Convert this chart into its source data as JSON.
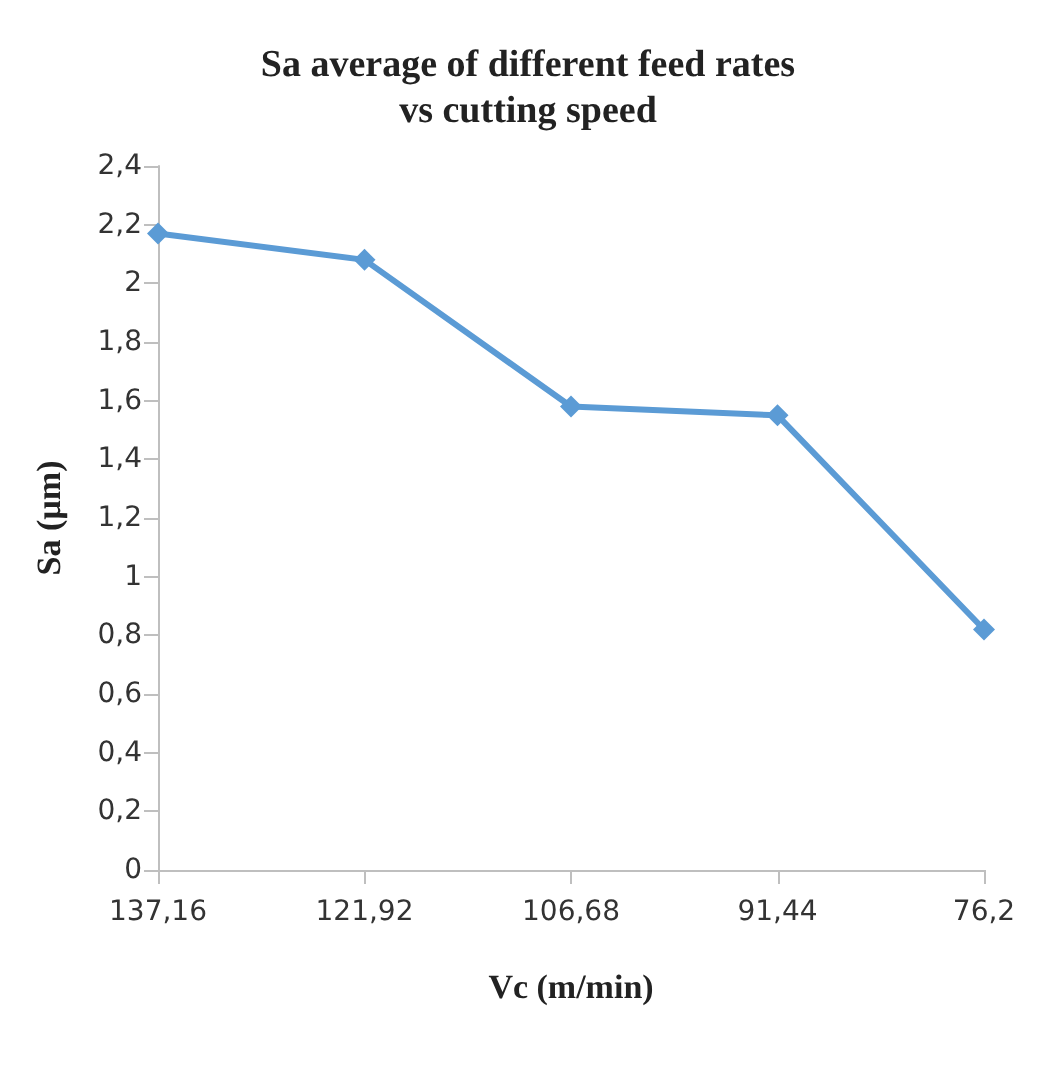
{
  "chart_data": {
    "type": "line",
    "title": "Sa average of different feed rates\nvs cutting speed",
    "xlabel": "Vc (m/min)",
    "ylabel": "Sa (µm)",
    "categories": [
      "137,16",
      "121,92",
      "106,68",
      "91,44",
      "76,2"
    ],
    "series": [
      {
        "color": "#5b9bd5",
        "values": [
          2.17,
          2.08,
          1.58,
          1.55,
          0.82
        ]
      }
    ],
    "ylim": [
      0,
      2.4
    ],
    "yticks": [
      0,
      {
        "value": 0.2,
        "label": "0,2"
      },
      {
        "value": 0.4,
        "label": "0,4"
      },
      {
        "value": 0.6,
        "label": "0,6"
      },
      {
        "value": 0.8,
        "label": "0,8"
      },
      1,
      {
        "value": 1.2,
        "label": "1,2"
      },
      {
        "value": 1.4,
        "label": "1,4"
      },
      {
        "value": 1.6,
        "label": "1,6"
      },
      {
        "value": 1.8,
        "label": "1,8"
      },
      2,
      {
        "value": 2.2,
        "label": "2,2"
      },
      {
        "value": 2.4,
        "label": "2,4"
      }
    ],
    "marker": "diamond",
    "grid": false
  }
}
